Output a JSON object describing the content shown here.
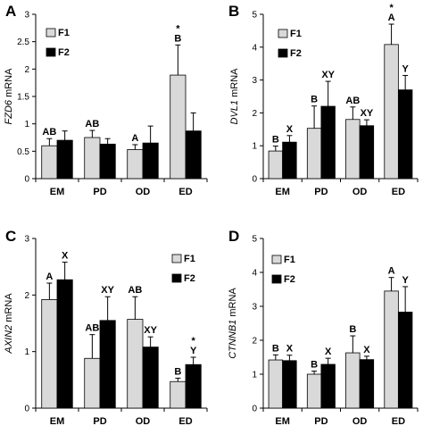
{
  "chart_data": [
    {
      "type": "bar",
      "panel": "A",
      "ylabel_gene": "FZD6",
      "ylabel_suffix": " mRNA",
      "categories": [
        "EM",
        "PD",
        "OD",
        "ED"
      ],
      "ylim": [
        0,
        3
      ],
      "yticks": [
        "0",
        "0.5",
        "1",
        "1.5",
        "2",
        "2.5",
        "3"
      ],
      "legend_position": "top-left",
      "series": [
        {
          "name": "F1",
          "color": "#d9d9d9",
          "values": [
            0.6,
            0.75,
            0.53,
            1.89
          ],
          "errors": [
            0.13,
            0.13,
            0.09,
            0.55
          ]
        },
        {
          "name": "F2",
          "color": "#000000",
          "values": [
            0.7,
            0.63,
            0.65,
            0.87
          ],
          "errors": [
            0.17,
            0.1,
            0.31,
            0.33
          ]
        }
      ],
      "annotations": [
        {
          "category": "EM",
          "series": 0,
          "lines": [
            "AB"
          ]
        },
        {
          "category": "PD",
          "series": 0,
          "lines": [
            "AB"
          ]
        },
        {
          "category": "OD",
          "series": 0,
          "lines": [
            "A"
          ]
        },
        {
          "category": "ED",
          "series": 0,
          "lines": [
            "*",
            "B"
          ]
        }
      ]
    },
    {
      "type": "bar",
      "panel": "B",
      "ylabel_gene": "DVL1",
      "ylabel_suffix": " mRNA",
      "categories": [
        "EM",
        "PD",
        "OD",
        "ED"
      ],
      "ylim": [
        0,
        5
      ],
      "yticks": [
        "0",
        "1",
        "2",
        "3",
        "4",
        "5"
      ],
      "legend_position": "top-left",
      "series": [
        {
          "name": "F1",
          "color": "#d9d9d9",
          "values": [
            0.84,
            1.53,
            1.8,
            4.08
          ],
          "errors": [
            0.15,
            0.68,
            0.38,
            0.62
          ]
        },
        {
          "name": "F2",
          "color": "#000000",
          "values": [
            1.11,
            2.2,
            1.61,
            2.7
          ],
          "errors": [
            0.2,
            0.76,
            0.18,
            0.44
          ]
        }
      ],
      "annotations": [
        {
          "category": "EM",
          "series": 0,
          "lines": [
            "B"
          ]
        },
        {
          "category": "EM",
          "series": 1,
          "lines": [
            "X"
          ]
        },
        {
          "category": "PD",
          "series": 0,
          "lines": [
            "B"
          ]
        },
        {
          "category": "PD",
          "series": 1,
          "lines": [
            "XY"
          ]
        },
        {
          "category": "OD",
          "series": 0,
          "lines": [
            "AB"
          ]
        },
        {
          "category": "OD",
          "series": 1,
          "lines": [
            "XY"
          ]
        },
        {
          "category": "ED",
          "series": 0,
          "lines": [
            "*",
            "A"
          ]
        },
        {
          "category": "ED",
          "series": 1,
          "lines": [
            "Y"
          ]
        }
      ]
    },
    {
      "type": "bar",
      "panel": "C",
      "ylabel_gene": "AXIN2",
      "ylabel_suffix": " mRNA",
      "categories": [
        "EM",
        "PD",
        "OD",
        "ED"
      ],
      "ylim": [
        0,
        3
      ],
      "yticks": [
        "0",
        "1",
        "2",
        "3"
      ],
      "legend_position": "top-right",
      "series": [
        {
          "name": "F1",
          "color": "#d9d9d9",
          "values": [
            1.92,
            0.88,
            1.57,
            0.47
          ],
          "errors": [
            0.29,
            0.42,
            0.4,
            0.06
          ]
        },
        {
          "name": "F2",
          "color": "#000000",
          "values": [
            2.27,
            1.55,
            1.08,
            0.77
          ],
          "errors": [
            0.31,
            0.42,
            0.18,
            0.13
          ]
        }
      ],
      "annotations": [
        {
          "category": "EM",
          "series": 0,
          "lines": [
            "A"
          ]
        },
        {
          "category": "EM",
          "series": 1,
          "lines": [
            "X"
          ]
        },
        {
          "category": "PD",
          "series": 0,
          "lines": [
            "AB"
          ]
        },
        {
          "category": "PD",
          "series": 1,
          "lines": [
            "XY"
          ]
        },
        {
          "category": "OD",
          "series": 0,
          "lines": [
            "AB"
          ]
        },
        {
          "category": "OD",
          "series": 1,
          "lines": [
            "XY"
          ]
        },
        {
          "category": "ED",
          "series": 0,
          "lines": [
            "B"
          ]
        },
        {
          "category": "ED",
          "series": 1,
          "lines": [
            "*",
            "Y"
          ]
        }
      ]
    },
    {
      "type": "bar",
      "panel": "D",
      "ylabel_gene": "CTNNB1",
      "ylabel_suffix": " mRNA",
      "categories": [
        "EM",
        "PD",
        "OD",
        "ED"
      ],
      "ylim": [
        0,
        5
      ],
      "yticks": [
        "0",
        "1",
        "2",
        "3",
        "4",
        "5"
      ],
      "legend_position": "top-left",
      "series": [
        {
          "name": "F1",
          "color": "#d9d9d9",
          "values": [
            1.42,
            1.0,
            1.63,
            3.45
          ],
          "errors": [
            0.15,
            0.09,
            0.5,
            0.4
          ]
        },
        {
          "name": "F2",
          "color": "#000000",
          "values": [
            1.4,
            1.29,
            1.43,
            2.83
          ],
          "errors": [
            0.16,
            0.18,
            0.1,
            0.75
          ]
        }
      ],
      "annotations": [
        {
          "category": "EM",
          "series": 0,
          "lines": [
            "B"
          ]
        },
        {
          "category": "EM",
          "series": 1,
          "lines": [
            "X"
          ]
        },
        {
          "category": "PD",
          "series": 0,
          "lines": [
            "B"
          ]
        },
        {
          "category": "PD",
          "series": 1,
          "lines": [
            "X"
          ]
        },
        {
          "category": "OD",
          "series": 0,
          "lines": [
            "B"
          ]
        },
        {
          "category": "OD",
          "series": 1,
          "lines": [
            "X"
          ]
        },
        {
          "category": "ED",
          "series": 0,
          "lines": [
            "A"
          ]
        },
        {
          "category": "ED",
          "series": 1,
          "lines": [
            "Y"
          ]
        }
      ]
    }
  ]
}
